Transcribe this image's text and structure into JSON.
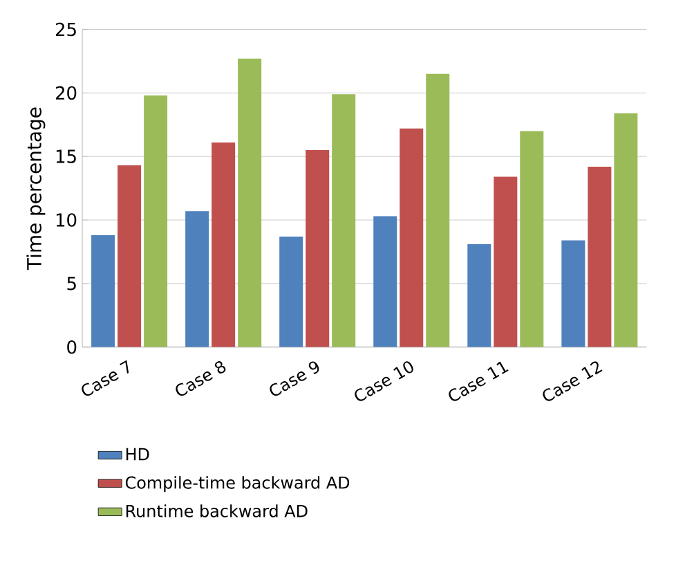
{
  "chart_data": {
    "type": "bar",
    "ylabel": "Time percentage",
    "categories": [
      "Case 7",
      "Case 8",
      "Case 9",
      "Case 10",
      "Case 11",
      "Case 12"
    ],
    "series": [
      {
        "name": "HD",
        "color": "#4f81bd",
        "values": [
          8.8,
          10.7,
          8.7,
          10.3,
          8.1,
          8.4
        ]
      },
      {
        "name": "Compile-time backward AD",
        "color": "#c0504d",
        "values": [
          14.3,
          16.1,
          15.5,
          17.2,
          13.4,
          14.2
        ]
      },
      {
        "name": "Runtime backward AD",
        "color": "#9bbb59",
        "values": [
          19.8,
          22.7,
          19.9,
          21.5,
          17.0,
          18.4
        ]
      }
    ],
    "ylim": [
      0,
      25
    ],
    "yticks": [
      0,
      5,
      10,
      15,
      20,
      25
    ],
    "grid": "y",
    "legend": "bottom"
  }
}
